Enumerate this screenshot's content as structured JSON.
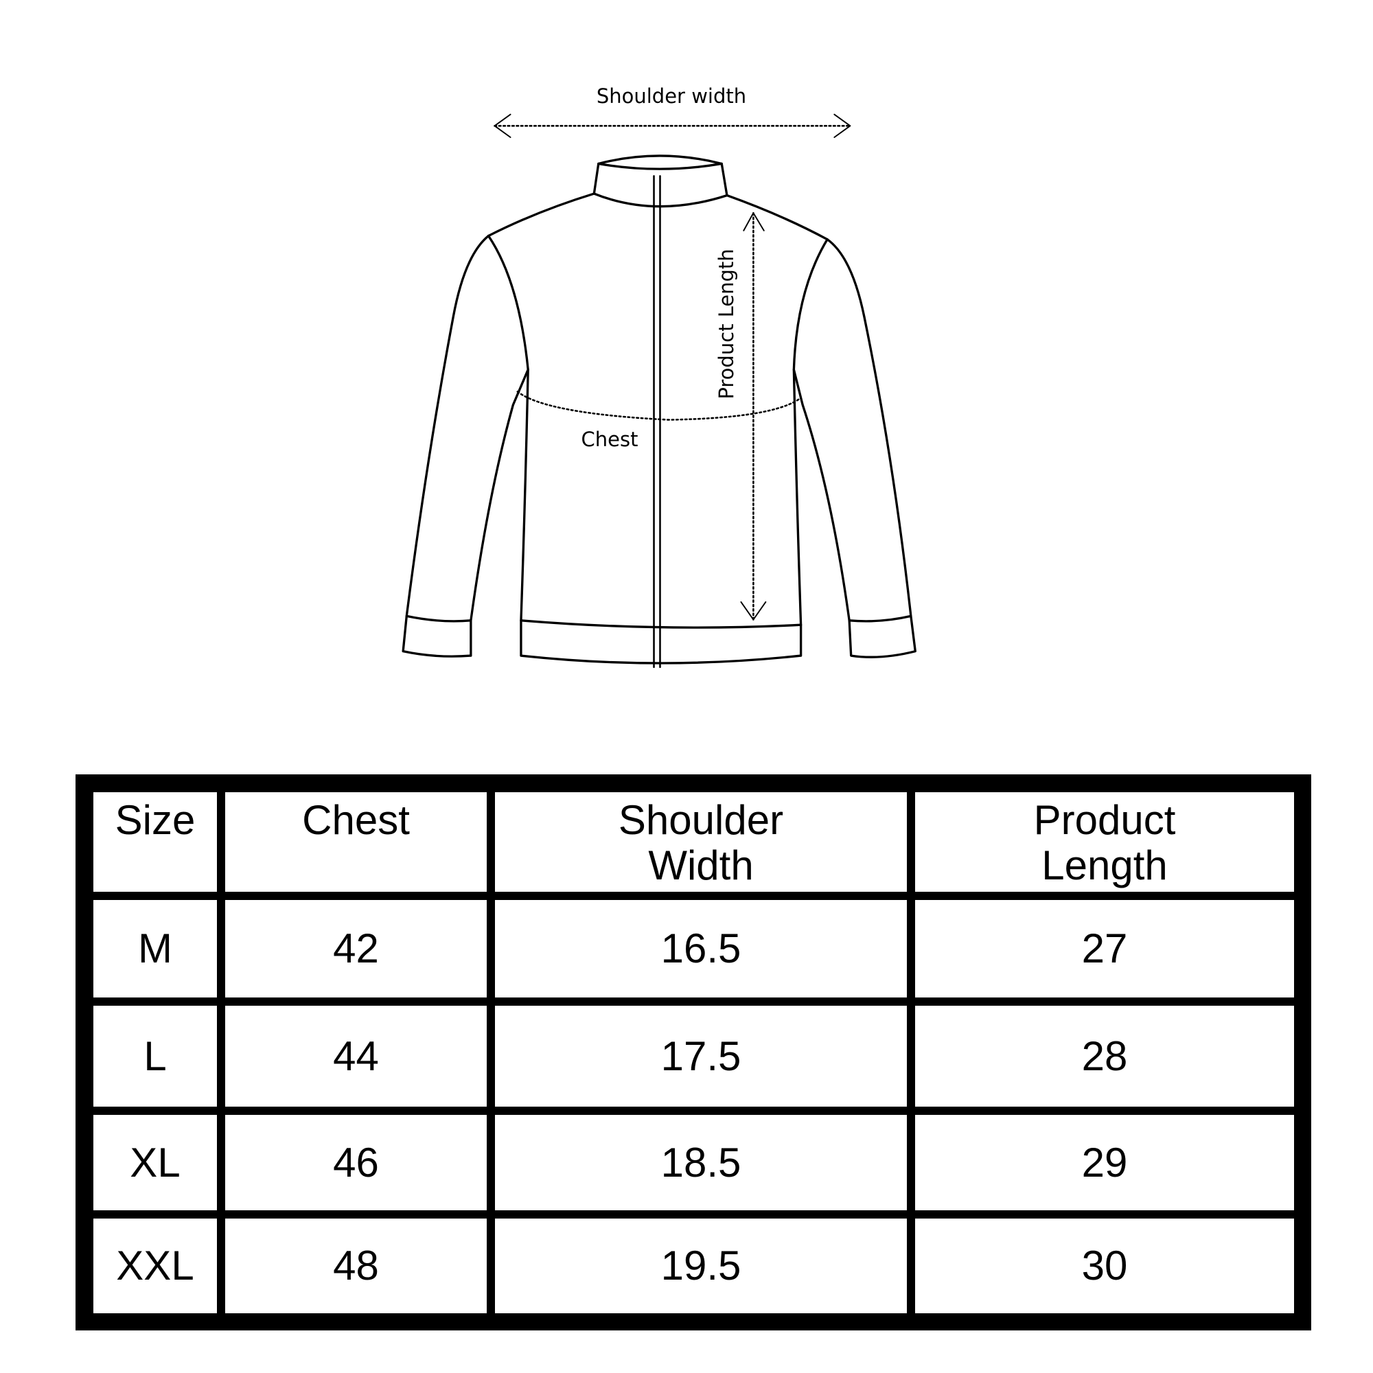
{
  "diagram": {
    "shoulder_label": "Shoulder width",
    "chest_label": "Chest",
    "length_label": "Product Length"
  },
  "table": {
    "headers": [
      "Size",
      "Chest",
      "Shoulder Width",
      "Product Length"
    ],
    "rows": [
      [
        "M",
        "42",
        "16.5",
        "27"
      ],
      [
        "L",
        "44",
        "17.5",
        "28"
      ],
      [
        "XL",
        "46",
        "18.5",
        "29"
      ],
      [
        "XXL",
        "48",
        "19.5",
        "30"
      ]
    ]
  }
}
